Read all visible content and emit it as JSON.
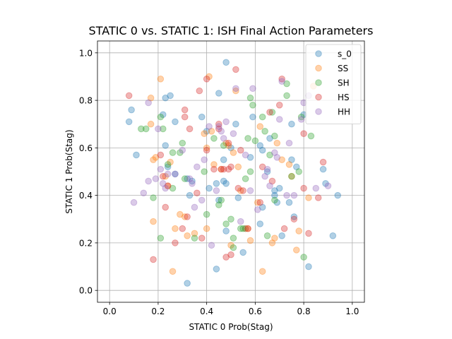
{
  "chart_data": {
    "type": "scatter",
    "title": "STATIC 0 vs. STATIC 1: ISH Final Action Parameters",
    "xlabel": "STATIC 0 Prob(Stag)",
    "ylabel": "STATIC 1 Prob(Stag)",
    "xlim": [
      -0.05,
      1.05
    ],
    "ylim": [
      -0.05,
      1.05
    ],
    "xticks": [
      "0.0",
      "0.2",
      "0.4",
      "0.6",
      "0.8",
      "1.0"
    ],
    "yticks": [
      "0.0",
      "0.2",
      "0.4",
      "0.6",
      "0.8",
      "1.0"
    ],
    "grid": true,
    "legend_position": "top-right",
    "series": [
      {
        "name": "s_0",
        "color": "#1f77b4",
        "points": [
          [
            0.48,
            0.96
          ],
          [
            0.08,
            0.71
          ],
          [
            0.09,
            0.76
          ],
          [
            0.11,
            0.57
          ],
          [
            0.22,
            0.74
          ],
          [
            0.23,
            0.81
          ],
          [
            0.25,
            0.82
          ],
          [
            0.23,
            0.61
          ],
          [
            0.27,
            0.71
          ],
          [
            0.24,
            0.52
          ],
          [
            0.27,
            0.49
          ],
          [
            0.32,
            0.47
          ],
          [
            0.33,
            0.4
          ],
          [
            0.32,
            0.03
          ],
          [
            0.38,
            0.73
          ],
          [
            0.4,
            0.67
          ],
          [
            0.44,
            0.45
          ],
          [
            0.47,
            0.46
          ],
          [
            0.45,
            0.38
          ],
          [
            0.48,
            0.45
          ],
          [
            0.44,
            0.09
          ],
          [
            0.47,
            0.55
          ],
          [
            0.48,
            0.25
          ],
          [
            0.5,
            0.6
          ],
          [
            0.52,
            0.7
          ],
          [
            0.53,
            0.39
          ],
          [
            0.55,
            0.16
          ],
          [
            0.45,
            0.83
          ],
          [
            0.58,
            0.56
          ],
          [
            0.59,
            0.73
          ],
          [
            0.62,
            0.61
          ],
          [
            0.63,
            0.59
          ],
          [
            0.62,
            0.28
          ],
          [
            0.63,
            0.35
          ],
          [
            0.66,
            0.64
          ],
          [
            0.68,
            0.42
          ],
          [
            0.69,
            0.37
          ],
          [
            0.68,
            0.4
          ],
          [
            0.7,
            0.43
          ],
          [
            0.71,
            0.23
          ],
          [
            0.74,
            0.37
          ],
          [
            0.75,
            0.7
          ],
          [
            0.75,
            0.55
          ],
          [
            0.76,
            0.31
          ],
          [
            0.77,
            0.52
          ],
          [
            0.8,
            0.74
          ],
          [
            0.82,
            0.1
          ],
          [
            0.88,
            0.51
          ],
          [
            0.89,
            0.45
          ],
          [
            0.92,
            0.23
          ],
          [
            0.94,
            0.4
          ],
          [
            0.41,
            0.43
          ],
          [
            0.56,
            0.26
          ],
          [
            0.34,
            0.46
          ],
          [
            0.65,
            0.5
          ]
        ]
      },
      {
        "name": "SS",
        "color": "#ff7f0e",
        "points": [
          [
            0.21,
            0.89
          ],
          [
            0.17,
            0.81
          ],
          [
            0.17,
            0.7
          ],
          [
            0.19,
            0.56
          ],
          [
            0.18,
            0.55
          ],
          [
            0.18,
            0.29
          ],
          [
            0.23,
            0.48
          ],
          [
            0.24,
            0.44
          ],
          [
            0.25,
            0.54
          ],
          [
            0.26,
            0.08
          ],
          [
            0.27,
            0.26
          ],
          [
            0.29,
            0.32
          ],
          [
            0.32,
            0.23
          ],
          [
            0.31,
            0.31
          ],
          [
            0.35,
            0.24
          ],
          [
            0.39,
            0.66
          ],
          [
            0.4,
            0.6
          ],
          [
            0.41,
            0.9
          ],
          [
            0.42,
            0.67
          ],
          [
            0.43,
            0.53
          ],
          [
            0.46,
            0.51
          ],
          [
            0.48,
            0.62
          ],
          [
            0.49,
            0.61
          ],
          [
            0.51,
            0.58
          ],
          [
            0.52,
            0.84
          ],
          [
            0.53,
            0.52
          ],
          [
            0.54,
            0.42
          ],
          [
            0.56,
            0.26
          ],
          [
            0.57,
            0.26
          ],
          [
            0.58,
            0.21
          ],
          [
            0.61,
            0.37
          ],
          [
            0.62,
            0.69
          ],
          [
            0.63,
            0.08
          ],
          [
            0.67,
            0.2
          ],
          [
            0.68,
            0.22
          ],
          [
            0.69,
            0.62
          ],
          [
            0.71,
            0.55
          ],
          [
            0.74,
            0.53
          ],
          [
            0.75,
            0.48
          ],
          [
            0.77,
            0.17
          ],
          [
            0.78,
            0.25
          ],
          [
            0.82,
            0.39
          ],
          [
            0.84,
            0.86
          ],
          [
            0.4,
            0.26
          ],
          [
            0.5,
            0.19
          ]
        ]
      },
      {
        "name": "SH",
        "color": "#2ca02c",
        "points": [
          [
            0.13,
            0.68
          ],
          [
            0.15,
            0.68
          ],
          [
            0.18,
            0.39
          ],
          [
            0.21,
            0.73
          ],
          [
            0.22,
            0.68
          ],
          [
            0.21,
            0.22
          ],
          [
            0.24,
            0.53
          ],
          [
            0.26,
            0.58
          ],
          [
            0.26,
            0.43
          ],
          [
            0.29,
            0.58
          ],
          [
            0.3,
            0.62
          ],
          [
            0.31,
            0.47
          ],
          [
            0.35,
            0.22
          ],
          [
            0.39,
            0.5
          ],
          [
            0.4,
            0.32
          ],
          [
            0.43,
            0.64
          ],
          [
            0.45,
            0.36
          ],
          [
            0.46,
            0.38
          ],
          [
            0.47,
            0.61
          ],
          [
            0.48,
            0.28
          ],
          [
            0.5,
            0.3
          ],
          [
            0.51,
            0.22
          ],
          [
            0.51,
            0.18
          ],
          [
            0.54,
            0.26
          ],
          [
            0.56,
            0.47
          ],
          [
            0.57,
            0.64
          ],
          [
            0.58,
            0.5
          ],
          [
            0.58,
            0.81
          ],
          [
            0.59,
            0.78
          ],
          [
            0.6,
            0.63
          ],
          [
            0.63,
            0.73
          ],
          [
            0.64,
            0.67
          ],
          [
            0.65,
            0.23
          ],
          [
            0.66,
            0.57
          ],
          [
            0.67,
            0.75
          ],
          [
            0.68,
            0.65
          ],
          [
            0.68,
            0.38
          ],
          [
            0.73,
            0.87
          ],
          [
            0.73,
            0.82
          ],
          [
            0.75,
            0.48
          ],
          [
            0.78,
            0.5
          ],
          [
            0.79,
            0.73
          ],
          [
            0.8,
            0.14
          ],
          [
            0.83,
            0.65
          ],
          [
            0.55,
            0.26
          ]
        ]
      },
      {
        "name": "HS",
        "color": "#d62728",
        "points": [
          [
            0.08,
            0.82
          ],
          [
            0.18,
            0.13
          ],
          [
            0.21,
            0.57
          ],
          [
            0.22,
            0.48
          ],
          [
            0.23,
            0.35
          ],
          [
            0.24,
            0.44
          ],
          [
            0.27,
            0.2
          ],
          [
            0.3,
            0.26
          ],
          [
            0.31,
            0.73
          ],
          [
            0.31,
            0.76
          ],
          [
            0.32,
            0.31
          ],
          [
            0.33,
            0.68
          ],
          [
            0.36,
            0.41
          ],
          [
            0.37,
            0.84
          ],
          [
            0.38,
            0.22
          ],
          [
            0.4,
            0.59
          ],
          [
            0.4,
            0.89
          ],
          [
            0.43,
            0.51
          ],
          [
            0.45,
            0.7
          ],
          [
            0.45,
            0.68
          ],
          [
            0.46,
            0.51
          ],
          [
            0.47,
            0.51
          ],
          [
            0.48,
            0.14
          ],
          [
            0.49,
            0.62
          ],
          [
            0.49,
            0.51
          ],
          [
            0.5,
            0.52
          ],
          [
            0.5,
            0.15
          ],
          [
            0.52,
            0.93
          ],
          [
            0.53,
            0.43
          ],
          [
            0.54,
            0.59
          ],
          [
            0.55,
            0.42
          ],
          [
            0.62,
            0.37
          ],
          [
            0.63,
            0.52
          ],
          [
            0.66,
            0.75
          ],
          [
            0.67,
            0.46
          ],
          [
            0.7,
            0.78
          ],
          [
            0.71,
            0.89
          ],
          [
            0.72,
            0.26
          ],
          [
            0.76,
            0.3
          ],
          [
            0.8,
            0.66
          ],
          [
            0.8,
            0.43
          ],
          [
            0.82,
            0.24
          ],
          [
            0.86,
            0.39
          ],
          [
            0.88,
            0.54
          ],
          [
            0.57,
            0.26
          ]
        ]
      },
      {
        "name": "HH",
        "color": "#9467bd",
        "points": [
          [
            0.1,
            0.37
          ],
          [
            0.14,
            0.41
          ],
          [
            0.16,
            0.46
          ],
          [
            0.16,
            0.79
          ],
          [
            0.19,
            0.47
          ],
          [
            0.2,
            0.68
          ],
          [
            0.21,
            0.51
          ],
          [
            0.22,
            0.45
          ],
          [
            0.23,
            0.43
          ],
          [
            0.24,
            0.49
          ],
          [
            0.27,
            0.49
          ],
          [
            0.3,
            0.59
          ],
          [
            0.33,
            0.47
          ],
          [
            0.34,
            0.45
          ],
          [
            0.35,
            0.35
          ],
          [
            0.36,
            0.52
          ],
          [
            0.38,
            0.38
          ],
          [
            0.39,
            0.55
          ],
          [
            0.41,
            0.69
          ],
          [
            0.42,
            0.19
          ],
          [
            0.44,
            0.42
          ],
          [
            0.45,
            0.69
          ],
          [
            0.46,
            0.67
          ],
          [
            0.47,
            0.64
          ],
          [
            0.48,
            0.71
          ],
          [
            0.51,
            0.66
          ],
          [
            0.52,
            0.85
          ],
          [
            0.54,
            0.29
          ],
          [
            0.56,
            0.57
          ],
          [
            0.58,
            0.42
          ],
          [
            0.59,
            0.85
          ],
          [
            0.61,
            0.34
          ],
          [
            0.64,
            0.48
          ],
          [
            0.65,
            0.51
          ],
          [
            0.66,
            0.44
          ],
          [
            0.68,
            0.58
          ],
          [
            0.7,
            0.72
          ],
          [
            0.71,
            0.88
          ],
          [
            0.73,
            0.4
          ],
          [
            0.74,
            0.62
          ],
          [
            0.76,
            0.4
          ],
          [
            0.79,
            0.72
          ],
          [
            0.8,
            0.79
          ],
          [
            0.82,
            0.82
          ],
          [
            0.85,
            0.43
          ],
          [
            0.9,
            0.44
          ],
          [
            0.69,
            0.56
          ]
        ]
      }
    ]
  }
}
